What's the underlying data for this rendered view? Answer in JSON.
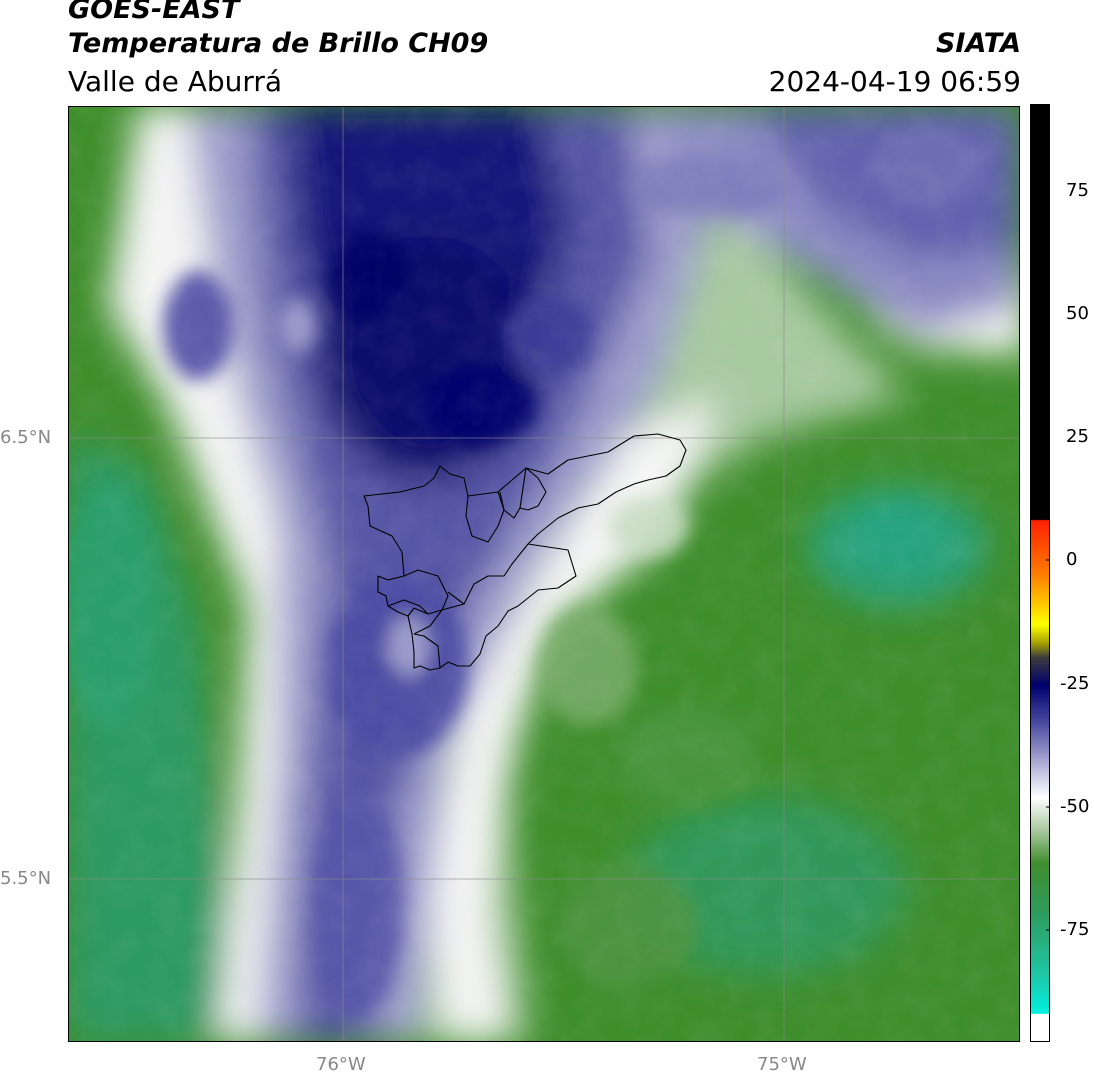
{
  "header": {
    "satellite": "GOES-EAST",
    "product": "Temperatura de Brillo CH09",
    "region": "Valle de Aburrá",
    "agency": "SIATA",
    "datetime": "2024-04-19 06:59"
  },
  "map": {
    "lat_labels": [
      "6.5°N",
      "5.5°N"
    ],
    "lon_labels": [
      "76°W",
      "75°W"
    ],
    "gridlines": true,
    "boundary": "Valle de Aburrá municipalities outline"
  },
  "colorbar": {
    "tick_labels": [
      "75",
      "50",
      "25",
      "0",
      "-25",
      "-50",
      "-75"
    ],
    "colors": {
      "black": "#000000",
      "red": "#ff2000",
      "orange": "#ff9000",
      "yellow": "#ffff00",
      "navy": "#00006e",
      "blue": "#4a4aa0",
      "white": "#ffffff",
      "green": "#3a8a2a",
      "cyan": "#00f0e0"
    }
  }
}
